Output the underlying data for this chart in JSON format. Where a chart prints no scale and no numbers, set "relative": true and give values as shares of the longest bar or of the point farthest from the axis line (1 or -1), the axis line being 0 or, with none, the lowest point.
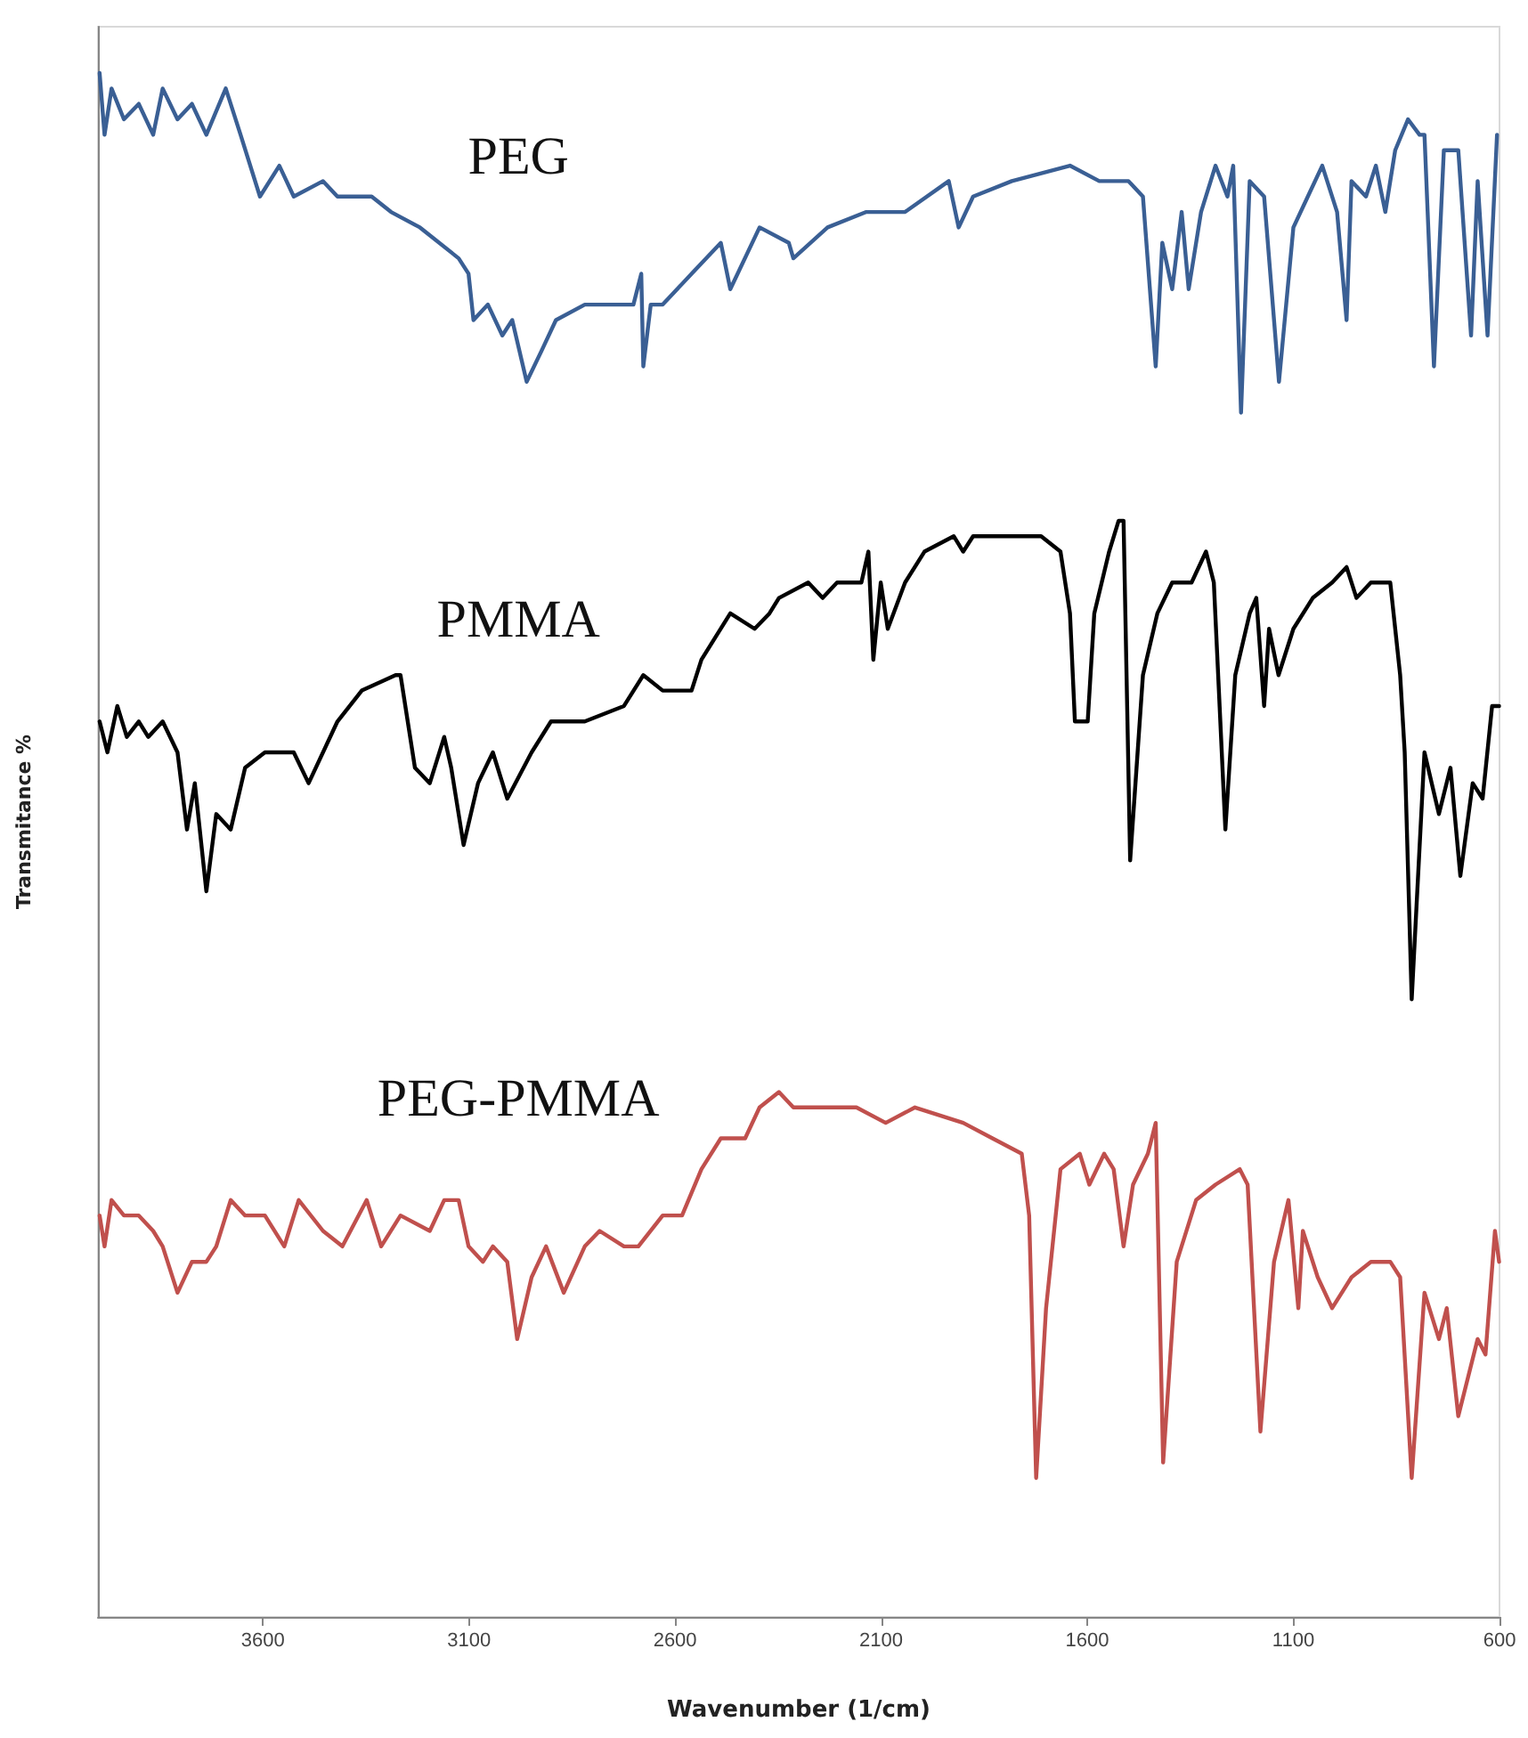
{
  "chart_data": {
    "type": "line",
    "xlabel": "Wavenumber (1/cm)",
    "ylabel": "Transmitance %",
    "relative": true,
    "xlim": [
      4000,
      600
    ],
    "xticks": [
      3600,
      3100,
      2600,
      2100,
      1600,
      1100,
      600
    ],
    "tick_labels": "x",
    "grid": false,
    "legend": false,
    "marker": "none",
    "line_style": "solid",
    "series": [
      {
        "name": "PEG",
        "color": "#3a5f94",
        "x": [
          3996,
          3984,
          3967,
          3937,
          3901,
          3866,
          3843,
          3807,
          3772,
          3737,
          3690,
          3654,
          3607,
          3560,
          3525,
          3454,
          3419,
          3336,
          3289,
          3219,
          3125,
          3101,
          3089,
          3054,
          3019,
          2995,
          2960,
          2924,
          2889,
          2819,
          2748,
          2701,
          2682,
          2677,
          2659,
          2630,
          2560,
          2489,
          2466,
          2395,
          2324,
          2313,
          2230,
          2136,
          2042,
          1936,
          1912,
          1877,
          1783,
          1642,
          1571,
          1500,
          1465,
          1434,
          1418,
          1394,
          1371,
          1354,
          1324,
          1289,
          1260,
          1246,
          1227,
          1206,
          1171,
          1135,
          1100,
          1065,
          1030,
          994,
          971,
          959,
          924,
          900,
          877,
          853,
          822,
          794,
          782,
          759,
          735,
          700,
          669,
          653,
          629,
          606
        ],
        "values": [
          1.0,
          0.96,
          0.99,
          0.97,
          0.98,
          0.96,
          0.99,
          0.97,
          0.98,
          0.96,
          0.99,
          0.96,
          0.92,
          0.94,
          0.92,
          0.93,
          0.92,
          0.92,
          0.91,
          0.9,
          0.88,
          0.87,
          0.84,
          0.85,
          0.83,
          0.84,
          0.8,
          0.82,
          0.84,
          0.85,
          0.85,
          0.85,
          0.87,
          0.81,
          0.85,
          0.85,
          0.87,
          0.89,
          0.86,
          0.9,
          0.89,
          0.88,
          0.9,
          0.91,
          0.91,
          0.93,
          0.9,
          0.92,
          0.93,
          0.94,
          0.93,
          0.93,
          0.92,
          0.81,
          0.89,
          0.86,
          0.91,
          0.86,
          0.91,
          0.94,
          0.92,
          0.94,
          0.78,
          0.93,
          0.92,
          0.8,
          0.9,
          0.92,
          0.94,
          0.91,
          0.84,
          0.93,
          0.92,
          0.94,
          0.91,
          0.95,
          0.97,
          0.96,
          0.96,
          0.81,
          0.95,
          0.95,
          0.83,
          0.93,
          0.83,
          0.96
        ]
      },
      {
        "name": "PMMA",
        "color": "#000000",
        "x": [
          3996,
          3977,
          3953,
          3930,
          3901,
          3878,
          3843,
          3807,
          3784,
          3765,
          3737,
          3713,
          3678,
          3643,
          3595,
          3525,
          3489,
          3419,
          3360,
          3278,
          3266,
          3231,
          3195,
          3160,
          3143,
          3113,
          3078,
          3042,
          3007,
          2948,
          2901,
          2819,
          2724,
          2677,
          2630,
          2560,
          2536,
          2466,
          2407,
          2371,
          2348,
          2277,
          2242,
          2207,
          2148,
          2131,
          2119,
          2101,
          2084,
          2042,
          1995,
          1924,
          1901,
          1877,
          1783,
          1712,
          1665,
          1642,
          1630,
          1599,
          1583,
          1547,
          1524,
          1512,
          1496,
          1465,
          1430,
          1394,
          1347,
          1312,
          1293,
          1265,
          1241,
          1206,
          1190,
          1171,
          1159,
          1136,
          1100,
          1053,
          1006,
          971,
          947,
          912,
          865,
          841,
          830,
          813,
          782,
          747,
          719,
          695,
          665,
          641,
          618,
          601
        ],
        "values": [
          0.58,
          0.56,
          0.59,
          0.57,
          0.58,
          0.57,
          0.58,
          0.56,
          0.51,
          0.54,
          0.47,
          0.52,
          0.51,
          0.55,
          0.56,
          0.56,
          0.54,
          0.58,
          0.6,
          0.61,
          0.61,
          0.55,
          0.54,
          0.57,
          0.55,
          0.5,
          0.54,
          0.56,
          0.53,
          0.56,
          0.58,
          0.58,
          0.59,
          0.61,
          0.6,
          0.6,
          0.62,
          0.65,
          0.64,
          0.65,
          0.66,
          0.67,
          0.66,
          0.67,
          0.67,
          0.69,
          0.62,
          0.67,
          0.64,
          0.67,
          0.69,
          0.7,
          0.69,
          0.7,
          0.7,
          0.7,
          0.69,
          0.65,
          0.58,
          0.58,
          0.65,
          0.69,
          0.71,
          0.71,
          0.49,
          0.61,
          0.65,
          0.67,
          0.67,
          0.69,
          0.67,
          0.51,
          0.61,
          0.65,
          0.66,
          0.59,
          0.64,
          0.61,
          0.64,
          0.66,
          0.67,
          0.68,
          0.66,
          0.67,
          0.67,
          0.61,
          0.56,
          0.4,
          0.56,
          0.52,
          0.55,
          0.48,
          0.54,
          0.53,
          0.59,
          0.59
        ]
      },
      {
        "name": "PEG-PMMA",
        "color": "#c0504d",
        "x": [
          3996,
          3984,
          3967,
          3937,
          3901,
          3866,
          3843,
          3807,
          3772,
          3737,
          3713,
          3678,
          3643,
          3595,
          3548,
          3513,
          3454,
          3407,
          3348,
          3313,
          3266,
          3195,
          3160,
          3125,
          3101,
          3066,
          3042,
          3007,
          2983,
          2948,
          2913,
          2870,
          2819,
          2783,
          2724,
          2689,
          2630,
          2583,
          2536,
          2489,
          2430,
          2395,
          2348,
          2313,
          2230,
          2160,
          2089,
          2018,
          1901,
          1830,
          1759,
          1741,
          1724,
          1700,
          1665,
          1618,
          1595,
          1559,
          1536,
          1512,
          1489,
          1453,
          1434,
          1416,
          1383,
          1336,
          1289,
          1230,
          1211,
          1180,
          1147,
          1112,
          1088,
          1077,
          1041,
          1006,
          959,
          912,
          865,
          841,
          813,
          782,
          747,
          728,
          700,
          653,
          634,
          611,
          601
        ],
        "values": [
          0.26,
          0.24,
          0.27,
          0.26,
          0.26,
          0.25,
          0.24,
          0.21,
          0.23,
          0.23,
          0.24,
          0.27,
          0.26,
          0.26,
          0.24,
          0.27,
          0.25,
          0.24,
          0.27,
          0.24,
          0.26,
          0.25,
          0.27,
          0.27,
          0.24,
          0.23,
          0.24,
          0.23,
          0.18,
          0.22,
          0.24,
          0.21,
          0.24,
          0.25,
          0.24,
          0.24,
          0.26,
          0.26,
          0.29,
          0.31,
          0.31,
          0.33,
          0.34,
          0.33,
          0.33,
          0.33,
          0.32,
          0.33,
          0.32,
          0.31,
          0.3,
          0.26,
          0.09,
          0.2,
          0.29,
          0.3,
          0.28,
          0.3,
          0.29,
          0.24,
          0.28,
          0.3,
          0.32,
          0.1,
          0.23,
          0.27,
          0.28,
          0.29,
          0.28,
          0.12,
          0.23,
          0.27,
          0.2,
          0.25,
          0.22,
          0.2,
          0.22,
          0.23,
          0.23,
          0.22,
          0.09,
          0.21,
          0.18,
          0.2,
          0.13,
          0.18,
          0.17,
          0.25,
          0.23
        ]
      }
    ]
  }
}
